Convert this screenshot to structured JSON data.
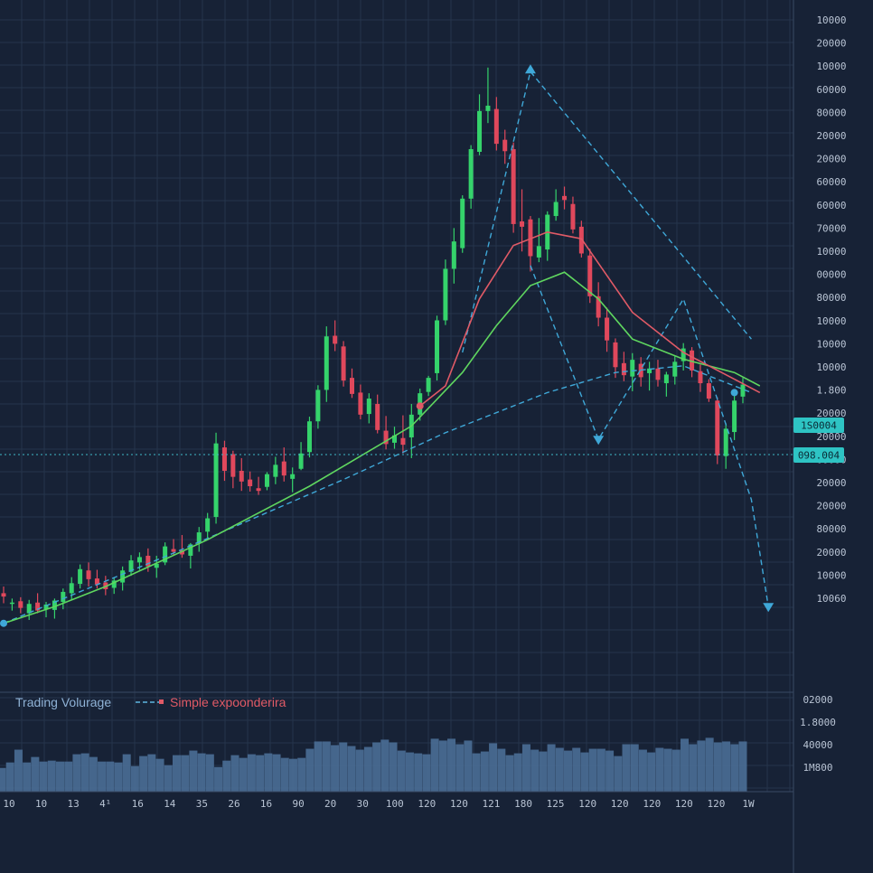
{
  "colors": {
    "background": "#172236",
    "grid": "#26344c",
    "up": "#35d36b",
    "down": "#e0485c",
    "volume": "#4a6e96",
    "sma": "#e05a66",
    "ema": "#5fd65f",
    "trend": "#3fa8d8",
    "tag_bg": "#2ec4c4"
  },
  "legend": {
    "volume_label": "Trading Volurage",
    "sma_label": "Simple expoonderira"
  },
  "price_axis_labels": [
    "10000",
    "20000",
    "10000",
    "60000",
    "80000",
    "20000",
    "20000",
    "60000",
    "60000",
    "70000",
    "10000",
    "00000",
    "80000",
    "10000",
    "10000",
    "10000",
    "1.800",
    "20000",
    "20000",
    "00000",
    "20000",
    "20000",
    "80000",
    "20000",
    "10000",
    "10060"
  ],
  "price_tags": [
    "1S0004",
    "098.004"
  ],
  "volume_axis_labels": [
    "02000",
    "1.8000",
    "40000",
    "1M800"
  ],
  "x_axis_labels": [
    "10",
    "10",
    "13",
    "4¹",
    "16",
    "14",
    "35",
    "26",
    "16",
    "90",
    "20",
    "30",
    "100",
    "120",
    "120",
    "121",
    "180",
    "125",
    "120",
    "120",
    "120",
    "120",
    "120",
    "1W"
  ],
  "chart_data": {
    "type": "candlestick",
    "ylim": [
      0,
      100
    ],
    "volume_ylim": [
      0,
      100
    ],
    "candles": [
      {
        "o": 14,
        "h": 15,
        "l": 12.5,
        "c": 13.5
      },
      {
        "o": 12.5,
        "h": 13.2,
        "l": 11.4,
        "c": 12.6
      },
      {
        "o": 12.8,
        "h": 13.4,
        "l": 11,
        "c": 11.8
      },
      {
        "o": 11,
        "h": 13,
        "l": 10,
        "c": 12.4
      },
      {
        "o": 12.6,
        "h": 14,
        "l": 11,
        "c": 11.4
      },
      {
        "o": 11.6,
        "h": 12.7,
        "l": 10.4,
        "c": 12.3
      },
      {
        "o": 11.5,
        "h": 13.2,
        "l": 10.2,
        "c": 12.9
      },
      {
        "o": 12.7,
        "h": 14.7,
        "l": 11.6,
        "c": 14.2
      },
      {
        "o": 14,
        "h": 16.4,
        "l": 13,
        "c": 15.5
      },
      {
        "o": 15.4,
        "h": 18.3,
        "l": 14.7,
        "c": 17.6
      },
      {
        "o": 17.4,
        "h": 18.6,
        "l": 15,
        "c": 16.1
      },
      {
        "o": 16.2,
        "h": 17.5,
        "l": 14.7,
        "c": 15.3
      },
      {
        "o": 15.6,
        "h": 16.6,
        "l": 13.7,
        "c": 14.6
      },
      {
        "o": 14.8,
        "h": 16.3,
        "l": 13.9,
        "c": 15.9
      },
      {
        "o": 15.6,
        "h": 18,
        "l": 14.4,
        "c": 17.4
      },
      {
        "o": 17.2,
        "h": 19.7,
        "l": 16.6,
        "c": 18.9
      },
      {
        "o": 18.6,
        "h": 20.1,
        "l": 17.5,
        "c": 19.4
      },
      {
        "o": 19.6,
        "h": 20.7,
        "l": 17.2,
        "c": 18
      },
      {
        "o": 17.8,
        "h": 19.6,
        "l": 16.3,
        "c": 18.4
      },
      {
        "o": 18.6,
        "h": 21.6,
        "l": 18.2,
        "c": 21
      },
      {
        "o": 20.6,
        "h": 22.1,
        "l": 19.7,
        "c": 20.2
      },
      {
        "o": 20.4,
        "h": 22.7,
        "l": 19.3,
        "c": 19.8
      },
      {
        "o": 19.6,
        "h": 21.5,
        "l": 17.7,
        "c": 21.3
      },
      {
        "o": 21.6,
        "h": 23.9,
        "l": 20.2,
        "c": 23.1
      },
      {
        "o": 23.2,
        "h": 26,
        "l": 22.3,
        "c": 25.2
      },
      {
        "o": 25.4,
        "h": 38,
        "l": 24.4,
        "c": 36.4
      },
      {
        "o": 35.8,
        "h": 36.8,
        "l": 30.8,
        "c": 32.3
      },
      {
        "o": 34.8,
        "h": 35.3,
        "l": 29.7,
        "c": 31.4
      },
      {
        "o": 32.3,
        "h": 34.2,
        "l": 29.3,
        "c": 30.7
      },
      {
        "o": 31,
        "h": 32.2,
        "l": 29.2,
        "c": 30
      },
      {
        "o": 29.7,
        "h": 31.4,
        "l": 28.7,
        "c": 29.3
      },
      {
        "o": 29.9,
        "h": 32.1,
        "l": 29.4,
        "c": 31.8
      },
      {
        "o": 31.4,
        "h": 34.4,
        "l": 30.3,
        "c": 33.2
      },
      {
        "o": 33.7,
        "h": 35.8,
        "l": 30.7,
        "c": 31.6
      },
      {
        "o": 31.1,
        "h": 32.8,
        "l": 29.1,
        "c": 31.8
      },
      {
        "o": 32.6,
        "h": 36.6,
        "l": 32.4,
        "c": 34.9
      },
      {
        "o": 35.1,
        "h": 40.4,
        "l": 34.3,
        "c": 39.7
      },
      {
        "o": 39.7,
        "h": 45.1,
        "l": 38.6,
        "c": 44.4
      },
      {
        "o": 44.4,
        "h": 53.9,
        "l": 42.6,
        "c": 52.4
      },
      {
        "o": 52.5,
        "h": 54.8,
        "l": 50.2,
        "c": 51.3
      },
      {
        "o": 50.9,
        "h": 51.7,
        "l": 44.9,
        "c": 45.8
      },
      {
        "o": 46.2,
        "h": 47.6,
        "l": 43.2,
        "c": 43.8
      },
      {
        "o": 44,
        "h": 45.2,
        "l": 40,
        "c": 40.7
      },
      {
        "o": 40.8,
        "h": 43.9,
        "l": 39.4,
        "c": 43.1
      },
      {
        "o": 42.3,
        "h": 43.7,
        "l": 37.9,
        "c": 38.4
      },
      {
        "o": 38.3,
        "h": 40.5,
        "l": 35.5,
        "c": 36.3
      },
      {
        "o": 36.5,
        "h": 38.9,
        "l": 35.6,
        "c": 37.6
      },
      {
        "o": 37.2,
        "h": 40.6,
        "l": 34.9,
        "c": 36.2
      },
      {
        "o": 37.3,
        "h": 42.3,
        "l": 34.2,
        "c": 40.7
      },
      {
        "o": 40.7,
        "h": 44.6,
        "l": 39.8,
        "c": 43.9
      },
      {
        "o": 44.1,
        "h": 46.5,
        "l": 43.5,
        "c": 46.2
      },
      {
        "o": 46.9,
        "h": 55.5,
        "l": 45.8,
        "c": 54.8
      },
      {
        "o": 54.8,
        "h": 63.9,
        "l": 54.1,
        "c": 62.5
      },
      {
        "o": 62.5,
        "h": 68.6,
        "l": 60.3,
        "c": 66.6
      },
      {
        "o": 65.6,
        "h": 73.5,
        "l": 64.9,
        "c": 73.0
      },
      {
        "o": 73,
        "h": 81,
        "l": 71.5,
        "c": 80.4
      },
      {
        "o": 80,
        "h": 88.6,
        "l": 79.5,
        "c": 86.1
      },
      {
        "o": 86.1,
        "h": 92.6,
        "l": 84.3,
        "c": 86.9
      },
      {
        "o": 86.4,
        "h": 88.2,
        "l": 80.2,
        "c": 81.2
      },
      {
        "o": 81.8,
        "h": 83.3,
        "l": 78.2,
        "c": 80.1
      },
      {
        "o": 80.4,
        "h": 81.4,
        "l": 67.9,
        "c": 69.2
      },
      {
        "o": 69.6,
        "h": 74.4,
        "l": 65.1,
        "c": 68.8
      },
      {
        "o": 69.9,
        "h": 70.4,
        "l": 62.1,
        "c": 64.4
      },
      {
        "o": 64.2,
        "h": 70.1,
        "l": 63.5,
        "c": 65.9
      },
      {
        "o": 65.4,
        "h": 71.1,
        "l": 63.7,
        "c": 70.6
      },
      {
        "o": 70.4,
        "h": 74.4,
        "l": 69.7,
        "c": 72.5
      },
      {
        "o": 73.4,
        "h": 74.8,
        "l": 71.4,
        "c": 72.8
      },
      {
        "o": 72.2,
        "h": 73.3,
        "l": 67.8,
        "c": 68.4
      },
      {
        "o": 68.8,
        "h": 69.7,
        "l": 64.2,
        "c": 64.8
      },
      {
        "o": 64.5,
        "h": 65.5,
        "l": 57.4,
        "c": 58.4
      },
      {
        "o": 58.4,
        "h": 60.5,
        "l": 53.9,
        "c": 55.2
      },
      {
        "o": 55.2,
        "h": 56.7,
        "l": 50.1,
        "c": 51.8
      },
      {
        "o": 51.5,
        "h": 52.1,
        "l": 46.2,
        "c": 47.8
      },
      {
        "o": 48.4,
        "h": 50.1,
        "l": 45.7,
        "c": 46.6
      },
      {
        "o": 46.4,
        "h": 49.9,
        "l": 44.2,
        "c": 48.9
      },
      {
        "o": 48.3,
        "h": 49.3,
        "l": 44.9,
        "c": 46.3
      },
      {
        "o": 46.9,
        "h": 48.6,
        "l": 44.3,
        "c": 47.6
      },
      {
        "o": 47.6,
        "h": 48.9,
        "l": 44.9,
        "c": 45.9
      },
      {
        "o": 45.4,
        "h": 47.1,
        "l": 43.4,
        "c": 46.7
      },
      {
        "o": 46.4,
        "h": 49.4,
        "l": 45.2,
        "c": 48.6
      },
      {
        "o": 48.7,
        "h": 51.4,
        "l": 47.3,
        "c": 50.6
      },
      {
        "o": 50.3,
        "h": 50.8,
        "l": 46.3,
        "c": 47.3
      },
      {
        "o": 47.2,
        "h": 48.2,
        "l": 44.1,
        "c": 45.4
      },
      {
        "o": 45.4,
        "h": 46,
        "l": 42.6,
        "c": 43.1
      },
      {
        "o": 42.8,
        "h": 43.3,
        "l": 33.3,
        "c": 34.6
      },
      {
        "o": 34.5,
        "h": 39.4,
        "l": 32.6,
        "c": 38.6
      },
      {
        "o": 38.1,
        "h": 43.9,
        "l": 36.9,
        "c": 42.8
      },
      {
        "o": 43.4,
        "h": 46.2,
        "l": 42.4,
        "c": 45.2
      }
    ],
    "volume": [
      26,
      32,
      46,
      32,
      38,
      33,
      34,
      33,
      33,
      41,
      42,
      38,
      33,
      33,
      32,
      41,
      28,
      39,
      41,
      36,
      29,
      40,
      40,
      45,
      42,
      41,
      27,
      34,
      40,
      37,
      41,
      40,
      42,
      41,
      37,
      36,
      37,
      47,
      55,
      55,
      51,
      54,
      50,
      46,
      49,
      54,
      57,
      54,
      45,
      43,
      42,
      41,
      58,
      56,
      58,
      52,
      56,
      42,
      44,
      53,
      47,
      40,
      42,
      52,
      46,
      44,
      52,
      48,
      45,
      48,
      43,
      47,
      47,
      45,
      39,
      52,
      52,
      46,
      43,
      48,
      47,
      46,
      58,
      52,
      56,
      59,
      54,
      55,
      52,
      55
    ],
    "ema_line": [
      [
        0,
        9.5
      ],
      [
        6,
        12
      ],
      [
        12,
        15
      ],
      [
        18,
        18.5
      ],
      [
        24,
        22
      ],
      [
        30,
        26
      ],
      [
        36,
        30
      ],
      [
        42,
        34.5
      ],
      [
        48,
        39
      ],
      [
        54,
        47
      ],
      [
        58,
        54
      ],
      [
        62,
        60
      ],
      [
        66,
        62
      ],
      [
        70,
        58
      ],
      [
        74,
        52
      ],
      [
        80,
        49
      ],
      [
        86,
        47
      ],
      [
        89,
        45
      ]
    ],
    "sma_line": [
      [
        49,
        42
      ],
      [
        52,
        45
      ],
      [
        56,
        58
      ],
      [
        60,
        66
      ],
      [
        64,
        68
      ],
      [
        68,
        67
      ],
      [
        74,
        56
      ],
      [
        80,
        50
      ],
      [
        86,
        46
      ],
      [
        89,
        44
      ]
    ],
    "trend_lines": [
      {
        "points": [
          [
            0,
            9.5
          ],
          [
            20,
            20
          ],
          [
            40,
            31
          ],
          [
            52,
            38
          ],
          [
            64,
            44
          ],
          [
            72,
            47
          ],
          [
            80,
            48
          ],
          [
            88,
            44
          ]
        ]
      },
      {
        "points": [
          [
            54,
            50
          ],
          [
            62,
            92
          ],
          [
            88,
            52
          ]
        ]
      },
      {
        "points": [
          [
            62,
            63
          ],
          [
            70,
            37
          ],
          [
            80,
            58
          ],
          [
            88,
            28
          ],
          [
            90,
            12
          ]
        ]
      }
    ]
  }
}
